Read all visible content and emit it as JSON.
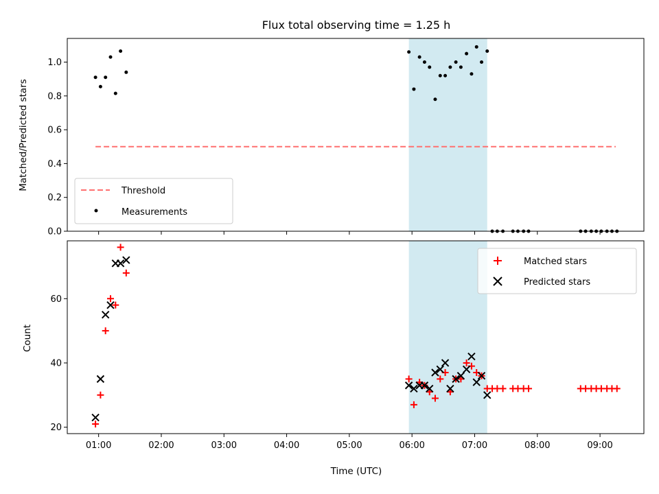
{
  "chart_data": [
    {
      "type": "scatter",
      "title": "Flux total observing time = 1.25 h",
      "xlabel": "",
      "ylabel": "Matched/Predicted stars",
      "ylim": [
        0,
        1.14
      ],
      "yticks": [
        0.0,
        0.2,
        0.4,
        0.6,
        0.8,
        1.0
      ],
      "ytick_labels": [
        "0.0",
        "0.2",
        "0.4",
        "0.6",
        "0.8",
        "1.0"
      ],
      "xlim_hours": [
        0.5,
        9.7
      ],
      "shaded_region_hours": [
        5.95,
        7.2
      ],
      "shaded_color": "#add8e6",
      "threshold": {
        "name": "Threshold",
        "value": 0.5,
        "x_range_hours": [
          0.95,
          9.25
        ],
        "color": "#ff6f6f"
      },
      "series": [
        {
          "name": "Measurements",
          "color": "#000000",
          "x_hours": [
            0.95,
            1.03,
            1.11,
            1.19,
            1.27,
            1.35,
            1.44,
            5.95,
            6.03,
            6.12,
            6.2,
            6.28,
            6.37,
            6.45,
            6.53,
            6.61,
            6.7,
            6.78,
            6.87,
            6.95,
            7.03,
            7.11,
            7.2,
            7.28,
            7.36,
            7.45,
            7.61,
            7.69,
            7.78,
            7.86,
            8.69,
            8.77,
            8.86,
            8.94,
            9.02,
            9.11,
            9.19,
            9.27
          ],
          "y": [
            0.91,
            0.855,
            0.91,
            1.03,
            0.815,
            1.065,
            0.94,
            1.06,
            0.84,
            1.03,
            1.0,
            0.97,
            0.78,
            0.92,
            0.92,
            0.97,
            1.0,
            0.97,
            1.05,
            0.93,
            1.09,
            1.0,
            1.065,
            0,
            0,
            0,
            0,
            0,
            0,
            0,
            0,
            0,
            0,
            0,
            0,
            0,
            0,
            0
          ]
        }
      ],
      "legend": {
        "placement": "lower-left",
        "entries": [
          "Threshold",
          "Measurements"
        ]
      }
    },
    {
      "type": "scatter",
      "title": "",
      "xlabel": "Time (UTC)",
      "ylabel": "Count",
      "ylim": [
        18,
        78
      ],
      "yticks": [
        20,
        40,
        60
      ],
      "ytick_labels": [
        "20",
        "40",
        "60"
      ],
      "xlim_hours": [
        0.5,
        9.7
      ],
      "xticks_hours": [
        1,
        2,
        3,
        4,
        5,
        6,
        7,
        8,
        9
      ],
      "xtick_labels": [
        "01:00",
        "02:00",
        "03:00",
        "04:00",
        "05:00",
        "06:00",
        "07:00",
        "08:00",
        "09:00"
      ],
      "shaded_region_hours": [
        5.95,
        7.2
      ],
      "shaded_color": "#add8e6",
      "series": [
        {
          "name": "Matched stars",
          "marker": "plus",
          "color": "#ff0000",
          "x_hours": [
            0.95,
            1.03,
            1.11,
            1.19,
            1.27,
            1.35,
            1.44,
            5.95,
            6.03,
            6.12,
            6.2,
            6.28,
            6.37,
            6.45,
            6.53,
            6.61,
            6.7,
            6.78,
            6.87,
            6.95,
            7.03,
            7.11,
            7.2,
            7.28,
            7.36,
            7.45,
            7.61,
            7.69,
            7.78,
            7.86,
            8.69,
            8.77,
            8.86,
            8.94,
            9.02,
            9.11,
            9.19,
            9.27
          ],
          "y": [
            21,
            30,
            50,
            60,
            58,
            76,
            68,
            35,
            27,
            34,
            33,
            31,
            29,
            35,
            37,
            31,
            35,
            35,
            40,
            39,
            37,
            36,
            32,
            32,
            32,
            32,
            32,
            32,
            32,
            32,
            32,
            32,
            32,
            32,
            32,
            32,
            32,
            32
          ]
        },
        {
          "name": "Predicted stars",
          "marker": "x",
          "color": "#000000",
          "x_hours": [
            0.95,
            1.03,
            1.11,
            1.19,
            1.27,
            1.35,
            1.44,
            5.95,
            6.03,
            6.12,
            6.2,
            6.28,
            6.37,
            6.45,
            6.53,
            6.61,
            6.7,
            6.78,
            6.87,
            6.95,
            7.03,
            7.11,
            7.2
          ],
          "y": [
            23,
            35,
            55,
            58,
            71,
            71,
            72,
            33,
            32,
            33,
            33,
            32,
            37,
            38,
            40,
            32,
            35,
            36,
            38,
            42,
            34,
            36,
            30
          ]
        }
      ],
      "legend": {
        "placement": "upper-right",
        "entries": [
          "Matched stars",
          "Predicted stars"
        ]
      }
    }
  ]
}
